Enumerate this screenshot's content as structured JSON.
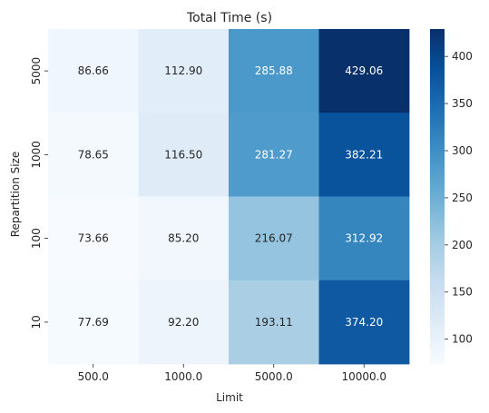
{
  "chart_data": {
    "type": "heatmap",
    "title": "Total Time (s)",
    "xlabel": "Limit",
    "ylabel": "Repartition Size",
    "x_categories": [
      "500.0",
      "1000.0",
      "5000.0",
      "10000.0"
    ],
    "y_categories": [
      "5000",
      "1000",
      "100",
      "10"
    ],
    "values": [
      [
        86.66,
        112.9,
        285.88,
        429.06
      ],
      [
        78.65,
        116.5,
        281.27,
        382.21
      ],
      [
        73.66,
        85.2,
        216.07,
        312.92
      ],
      [
        77.69,
        92.2,
        193.11,
        374.2
      ]
    ],
    "value_labels": [
      [
        "86.66",
        "112.90",
        "285.88",
        "429.06"
      ],
      [
        "78.65",
        "116.50",
        "281.27",
        "382.21"
      ],
      [
        "73.66",
        "85.20",
        "216.07",
        "312.92"
      ],
      [
        "77.69",
        "92.20",
        "193.11",
        "374.20"
      ]
    ],
    "colorbar": {
      "range": [
        73.66,
        429.06
      ],
      "ticks": [
        "100",
        "150",
        "200",
        "250",
        "300",
        "350",
        "400"
      ],
      "colormap": "Blues"
    }
  }
}
